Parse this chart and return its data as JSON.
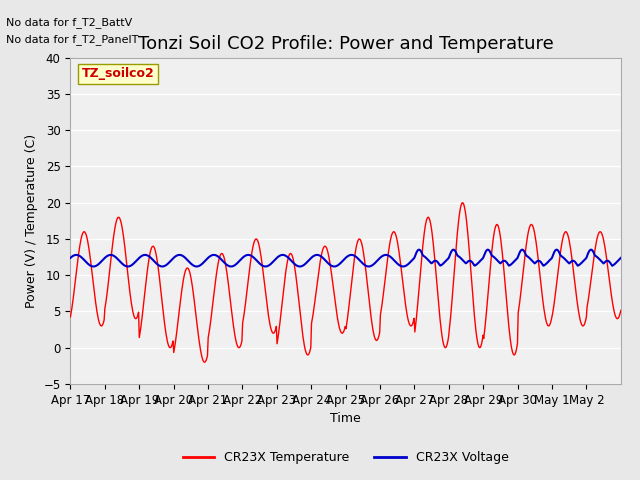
{
  "title": "Tonzi Soil CO2 Profile: Power and Temperature",
  "xlabel": "Time",
  "ylabel": "Power (V) / Temperature (C)",
  "ylim": [
    -5,
    40
  ],
  "yticks": [
    -5,
    0,
    5,
    10,
    15,
    20,
    25,
    30,
    35,
    40
  ],
  "xlabels": [
    "Apr 17",
    "Apr 18",
    "Apr 19",
    "Apr 20",
    "Apr 21",
    "Apr 22",
    "Apr 23",
    "Apr 24",
    "Apr 25",
    "Apr 26",
    "Apr 27",
    "Apr 28",
    "Apr 29",
    "Apr 30",
    "May 1",
    "May 2"
  ],
  "no_data_text": [
    "No data for f_T2_BattV",
    "No data for f_T2_PanelT"
  ],
  "legend_box_label": "TZ_soilco2",
  "legend_entries": [
    "CR23X Temperature",
    "CR23X Voltage"
  ],
  "legend_colors": [
    "#ff0000",
    "#0000cc"
  ],
  "temp_color": "#ff0000",
  "volt_color": "#0000cc",
  "bg_color": "#e8e8e8",
  "plot_bg_color": "#f0f0f0",
  "grid_color": "#ffffff",
  "title_fontsize": 13,
  "label_fontsize": 9,
  "tick_fontsize": 8.5,
  "n_days": 16
}
